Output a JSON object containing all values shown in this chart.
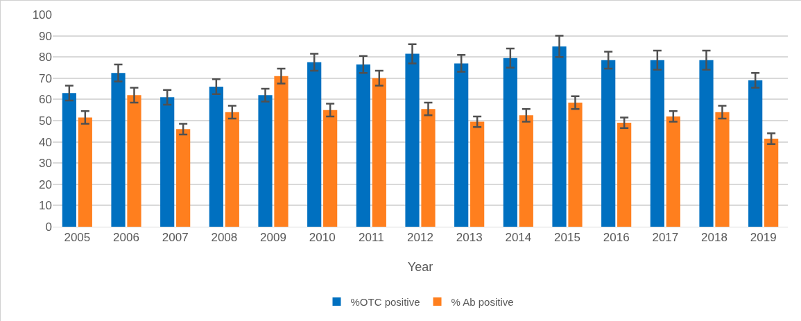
{
  "chart_data": {
    "type": "bar",
    "xlabel": "Year",
    "categories": [
      "2005",
      "2006",
      "2007",
      "2008",
      "2009",
      "2010",
      "2011",
      "2012",
      "2013",
      "2014",
      "2015",
      "2016",
      "2017",
      "2018",
      "2019"
    ],
    "series": [
      {
        "name": "%OTC positive",
        "color": "#0070c0",
        "values": [
          63,
          72.5,
          61,
          66,
          62,
          77.5,
          76.5,
          81.5,
          77,
          79.5,
          85,
          78.5,
          78.5,
          78.5,
          69
        ],
        "errors": [
          3.5,
          4,
          3.5,
          3.5,
          3,
          4,
          4,
          4.5,
          4,
          4.5,
          5,
          4,
          4.5,
          4.5,
          3.5
        ]
      },
      {
        "name": "% Ab positive",
        "color": "#ff7f1e",
        "values": [
          51.5,
          62,
          46,
          54,
          71,
          55,
          70,
          55.5,
          49.5,
          52.5,
          58.5,
          49,
          52,
          54,
          41.5
        ],
        "errors": [
          3,
          3.5,
          2.5,
          3,
          3.5,
          3,
          3.5,
          3,
          2.5,
          3,
          3,
          2.5,
          2.5,
          3,
          2.5
        ]
      }
    ],
    "ylim": [
      0,
      100
    ],
    "yticks": [
      0,
      10,
      20,
      30,
      40,
      50,
      60,
      70,
      80,
      90,
      100
    ],
    "grid": "y",
    "legend": "bottom"
  }
}
